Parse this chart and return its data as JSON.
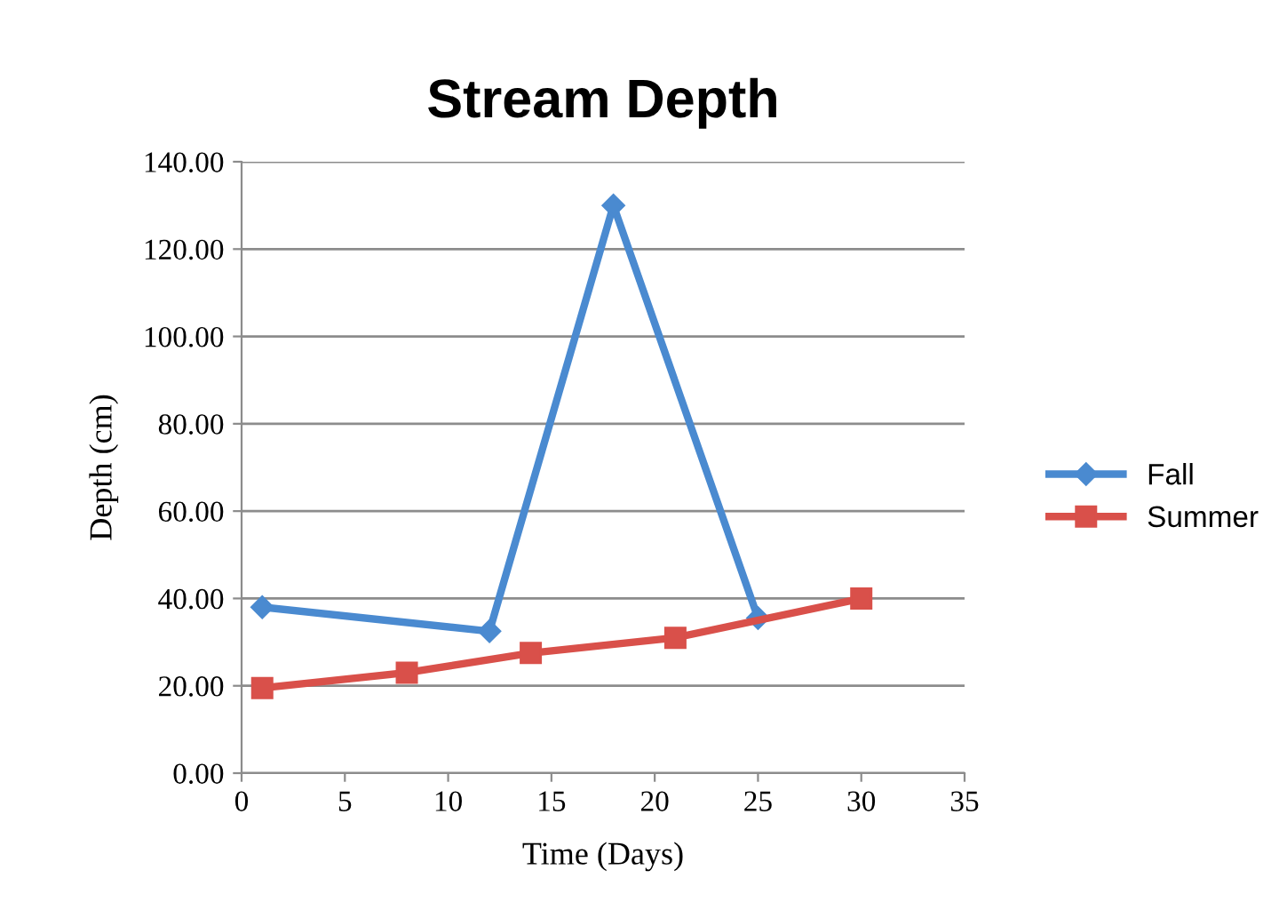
{
  "chart_data": {
    "type": "line",
    "title": "Stream Depth",
    "xlabel": "Time (Days)",
    "ylabel": "Depth (cm)",
    "xlim": [
      0,
      35
    ],
    "xticks": [
      0,
      5,
      10,
      15,
      20,
      25,
      30,
      35
    ],
    "ylim": [
      0,
      140
    ],
    "yticks": [
      {
        "value": 0,
        "label": "0.00"
      },
      {
        "value": 20,
        "label": "20.00"
      },
      {
        "value": 40,
        "label": "40.00"
      },
      {
        "value": 60,
        "label": "60.00"
      },
      {
        "value": 80,
        "label": "80.00"
      },
      {
        "value": 100,
        "label": "100.00"
      },
      {
        "value": 120,
        "label": "120.00"
      },
      {
        "value": 140,
        "label": "140.00"
      }
    ],
    "grid": "y",
    "legend": "right",
    "line_style": "solid",
    "series": [
      {
        "name": "Fall",
        "color": "#4a8ad0",
        "marker": "diamond",
        "x": [
          1,
          12,
          18,
          25
        ],
        "values": [
          38,
          32.5,
          130,
          35.5
        ]
      },
      {
        "name": "Summer",
        "color": "#d9504a",
        "marker": "square",
        "x": [
          1,
          8,
          14,
          21,
          30
        ],
        "values": [
          19.5,
          23,
          27.5,
          31,
          40
        ]
      }
    ]
  }
}
